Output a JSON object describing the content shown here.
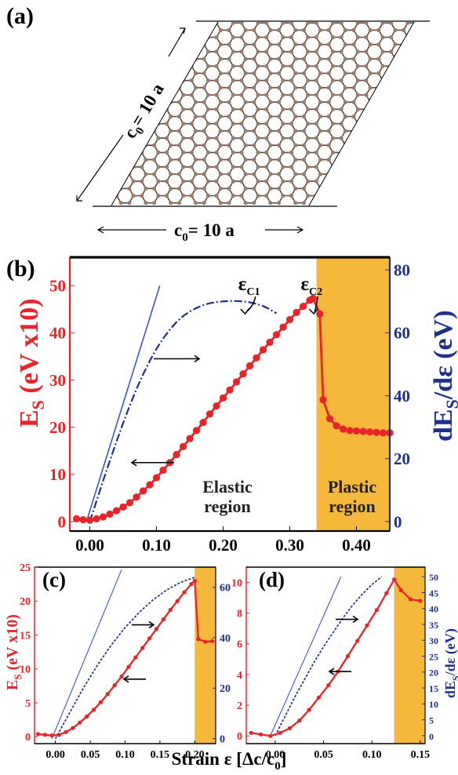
{
  "panel_labels": {
    "a": "(a)",
    "b": "(b)",
    "c": "(c)",
    "d": "(d)"
  },
  "lattice": {
    "c0_label": "c",
    "c0_sub": "0",
    "c0_eq": "= 10 a",
    "atom_color": "#9a7d6a",
    "bond_color": "#5a4a40"
  },
  "colors": {
    "es": "#e8232a",
    "deriv": "#1f2f8c",
    "plastic": "#f5b83a",
    "line": "#3a57c4"
  },
  "xaxis_label": "Strain ε [Δc/c",
  "xaxis_label_sub": "0",
  "xaxis_label_end": "]",
  "chart_data": [
    {
      "panel": "b",
      "type": "line",
      "xlim": [
        -0.03,
        0.45
      ],
      "ylim_left": [
        -2,
        56
      ],
      "ylim_right": [
        -3,
        84
      ],
      "xticks": [
        0.0,
        0.1,
        0.2,
        0.3,
        0.4
      ],
      "xtick_labels": [
        "0.00",
        "0.10",
        "0.20",
        "0.30",
        "0.40"
      ],
      "yticks_left": [
        0,
        10,
        20,
        30,
        40,
        50
      ],
      "yticks_right": [
        0,
        20,
        40,
        60,
        80
      ],
      "ylabel_left": "E_S (eV x10)",
      "ylabel_right": "dE_S/dε (eV)",
      "plastic_from": 0.34,
      "region_elastic": [
        "Elastic",
        "region"
      ],
      "region_plastic": [
        "Plastic",
        "region"
      ],
      "critical_1": {
        "label": "ε",
        "sub": "C1",
        "x": 0.232
      },
      "critical_2": {
        "label": "ε",
        "sub": "C2",
        "x": 0.335
      },
      "es": {
        "x": [
          -0.02,
          -0.01,
          0.0,
          0.01,
          0.02,
          0.03,
          0.04,
          0.05,
          0.06,
          0.07,
          0.08,
          0.09,
          0.1,
          0.11,
          0.12,
          0.13,
          0.14,
          0.15,
          0.16,
          0.17,
          0.18,
          0.19,
          0.2,
          0.21,
          0.22,
          0.23,
          0.24,
          0.25,
          0.26,
          0.27,
          0.28,
          0.29,
          0.3,
          0.31,
          0.32,
          0.33,
          0.335,
          0.345,
          0.35,
          0.36,
          0.37,
          0.38,
          0.39,
          0.4,
          0.41,
          0.42,
          0.43,
          0.44,
          0.45
        ],
        "y": [
          0.6,
          0.4,
          0.3,
          0.6,
          1.0,
          1.6,
          2.3,
          3.1,
          4.0,
          5.2,
          6.5,
          7.8,
          9.3,
          10.9,
          12.5,
          14.2,
          15.9,
          17.6,
          19.3,
          21.0,
          22.8,
          24.5,
          26.2,
          27.9,
          29.6,
          31.3,
          33.0,
          34.7,
          36.4,
          38.0,
          39.6,
          41.2,
          42.8,
          44.3,
          45.6,
          46.9,
          47.3,
          44.0,
          25.8,
          21.8,
          20.3,
          19.6,
          19.3,
          19.2,
          19.1,
          19.0,
          18.9,
          18.8,
          18.8
        ]
      },
      "deriv": {
        "x": [
          0.0,
          0.01,
          0.02,
          0.03,
          0.04,
          0.05,
          0.06,
          0.07,
          0.08,
          0.09,
          0.1,
          0.11,
          0.12,
          0.13,
          0.14,
          0.15,
          0.16,
          0.17,
          0.18,
          0.19,
          0.2,
          0.21,
          0.22,
          0.23,
          0.24,
          0.25,
          0.26,
          0.27,
          0.28
        ],
        "y": [
          0,
          6.5,
          13.0,
          19.3,
          25.4,
          31.3,
          36.9,
          42.1,
          46.8,
          51.1,
          54.9,
          58.2,
          61.0,
          63.4,
          65.3,
          66.8,
          67.9,
          68.8,
          69.4,
          69.8,
          70.0,
          70.1,
          70.1,
          70.0,
          69.7,
          69.2,
          68.5,
          67.5,
          66.2
        ]
      },
      "linear": {
        "x": [
          -0.005,
          0.105
        ],
        "y": [
          0,
          75
        ]
      },
      "arrow_left_y": 12.5,
      "arrow_right_y": 34.5
    },
    {
      "panel": "c",
      "type": "line",
      "xlim": [
        -0.03,
        0.23
      ],
      "ylim_left": [
        -1,
        25
      ],
      "ylim_right": [
        -2,
        68
      ],
      "xticks": [
        0.0,
        0.05,
        0.1,
        0.15,
        0.2
      ],
      "xtick_labels": [
        "0.00",
        "0.05",
        "0.10",
        "0.15",
        "0.20"
      ],
      "yticks_left": [
        0,
        5,
        10,
        15,
        20,
        25
      ],
      "yticks_right": [
        0,
        20,
        40,
        60
      ],
      "ylabel_left": "E_S (eV x10)",
      "plastic_from": 0.2,
      "es": {
        "x": [
          -0.025,
          -0.015,
          -0.005,
          0.005,
          0.015,
          0.025,
          0.035,
          0.045,
          0.055,
          0.065,
          0.075,
          0.085,
          0.095,
          0.105,
          0.115,
          0.125,
          0.135,
          0.145,
          0.155,
          0.165,
          0.175,
          0.185,
          0.195,
          0.2,
          0.205,
          0.215,
          0.225
        ],
        "y": [
          0.4,
          0.3,
          0.2,
          0.3,
          0.7,
          1.3,
          2.1,
          3.0,
          4.0,
          5.1,
          6.3,
          7.6,
          8.9,
          10.3,
          11.7,
          13.1,
          14.5,
          15.9,
          17.3,
          18.7,
          20.0,
          21.3,
          22.5,
          23.0,
          14.4,
          14.0,
          14.1
        ]
      },
      "deriv": {
        "x": [
          0.0,
          0.02,
          0.04,
          0.06,
          0.08,
          0.1,
          0.12,
          0.14,
          0.16,
          0.18,
          0.2
        ],
        "y": [
          0,
          10,
          20,
          29,
          37,
          44,
          50,
          55,
          59,
          62,
          64
        ]
      },
      "linear": {
        "x": [
          -0.005,
          0.095
        ],
        "y": [
          0,
          67
        ]
      },
      "arrow_left_y": 8.5,
      "arrow_right_y": 16.5
    },
    {
      "panel": "d",
      "type": "line",
      "xlim": [
        -0.03,
        0.155
      ],
      "ylim_left": [
        -0.5,
        11
      ],
      "ylim_right": [
        -2.5,
        53
      ],
      "xticks": [
        0.0,
        0.05,
        0.1,
        0.15
      ],
      "xtick_labels": [
        "0.00",
        "0.05",
        "0.10",
        "0.15"
      ],
      "yticks_left": [
        0,
        2,
        4,
        6,
        8,
        10
      ],
      "yticks_right": [
        0,
        5,
        10,
        15,
        20,
        25,
        30,
        35,
        40,
        45,
        50
      ],
      "ylabel_right": "dE_S/dε (eV)",
      "plastic_from": 0.123,
      "es": {
        "x": [
          -0.025,
          -0.015,
          -0.005,
          0.005,
          0.015,
          0.025,
          0.035,
          0.045,
          0.055,
          0.065,
          0.075,
          0.085,
          0.095,
          0.105,
          0.115,
          0.123,
          0.13,
          0.14,
          0.15
        ],
        "y": [
          0.2,
          0.1,
          0.0,
          0.2,
          0.5,
          1.0,
          1.7,
          2.5,
          3.3,
          4.2,
          5.2,
          6.2,
          7.2,
          8.2,
          9.3,
          10.2,
          9.5,
          8.9,
          8.8
        ]
      },
      "deriv": {
        "x": [
          0.0,
          0.01,
          0.02,
          0.03,
          0.04,
          0.05,
          0.06,
          0.07,
          0.08,
          0.09,
          0.1,
          0.11
        ],
        "y": [
          0,
          6,
          12,
          17.5,
          23,
          28,
          32.5,
          37,
          41,
          44.5,
          47.5,
          50
        ]
      },
      "linear": {
        "x": [
          -0.005,
          0.068
        ],
        "y": [
          0,
          50
        ]
      },
      "arrow_left_y": 4.2,
      "arrow_right_y": 7.6
    }
  ]
}
